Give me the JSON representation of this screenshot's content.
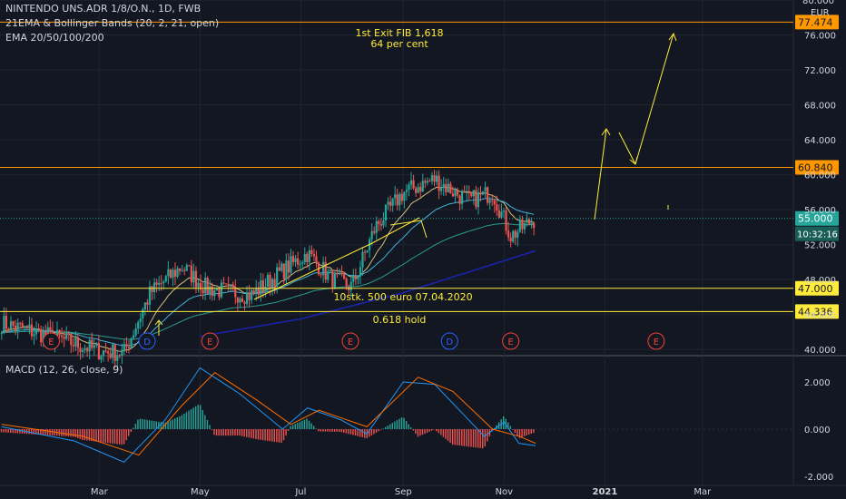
{
  "header": {
    "symbol_line": "NINTENDO UNS.ADR 1/8/O.N., 1D, FWB",
    "indicator_1": "21EMA & Bollinger Bands (20, 2, 21, open)",
    "indicator_2": "EMA 20/50/100/200",
    "currency": "EUR"
  },
  "macd_panel": {
    "label": "MACD (12, 26, close, 9)"
  },
  "colors": {
    "background": "#131722",
    "candle_up": "#26a69a",
    "candle_down": "#ef5350",
    "hline_orange": "#ff9800",
    "hline_yellow": "#ffeb3b",
    "annotation": "#ffeb3b",
    "ema_200": "#1a23b0",
    "earnings_marker": "#f44336",
    "dividend_marker": "#2962ff"
  },
  "chart_data": [
    {
      "type": "candlestick",
      "title": "NINTENDO UNS.ADR 1/8/O.N., 1D, FWB",
      "ylim": [
        39.5,
        80.0
      ],
      "y_ticks": [
        "40.000",
        "44.000",
        "48.000",
        "52.000",
        "56.000",
        "60.000",
        "64.000",
        "68.000",
        "72.000",
        "76.000",
        "80.000"
      ],
      "x_ticks": [
        "Mar",
        "May",
        "Jul",
        "Sep",
        "Nov",
        "2021",
        "Mar"
      ],
      "approx_close_path": [
        {
          "date": "2020-01-02",
          "close": 43.0
        },
        {
          "date": "2020-02-01",
          "close": 41.5
        },
        {
          "date": "2020-03-01",
          "close": 39.8
        },
        {
          "date": "2020-03-16",
          "close": 39.6
        },
        {
          "date": "2020-04-01",
          "close": 46.5
        },
        {
          "date": "2020-04-20",
          "close": 49.5
        },
        {
          "date": "2020-05-05",
          "close": 47.0
        },
        {
          "date": "2020-06-01",
          "close": 46.2
        },
        {
          "date": "2020-06-20",
          "close": 49.0
        },
        {
          "date": "2020-07-05",
          "close": 51.0
        },
        {
          "date": "2020-07-20",
          "close": 48.0
        },
        {
          "date": "2020-08-01",
          "close": 47.2
        },
        {
          "date": "2020-08-15",
          "close": 54.0
        },
        {
          "date": "2020-09-01",
          "close": 58.0
        },
        {
          "date": "2020-09-20",
          "close": 59.5
        },
        {
          "date": "2020-10-10",
          "close": 57.0
        },
        {
          "date": "2020-10-25",
          "close": 58.0
        },
        {
          "date": "2020-11-05",
          "close": 53.0
        },
        {
          "date": "2020-11-20",
          "close": 55.0
        }
      ],
      "horizontal_lines": [
        {
          "label": "77.474",
          "value": 77.474,
          "color": "#ff9800"
        },
        {
          "label": "60.840",
          "value": 60.84,
          "color": "#ff9800"
        },
        {
          "label": "47.000",
          "value": 47.0,
          "color": "#ffeb3b"
        },
        {
          "label": "44.336",
          "value": 44.336,
          "color": "#ffeb3b"
        }
      ],
      "last_price": {
        "label": "55.000",
        "value": 55.0
      },
      "countdown": "10:32:16",
      "annotations": [
        {
          "text_1": "1st Exit FIB 1,618",
          "text_2": "64 per cent"
        },
        {
          "text": "10stk. 500 euro 07.04.2020"
        },
        {
          "text": "0.618 hold"
        }
      ],
      "event_markers": [
        {
          "kind": "E",
          "date": "2020-02-01"
        },
        {
          "kind": "D",
          "date": "2020-03-30"
        },
        {
          "kind": "E",
          "date": "2020-05-07"
        },
        {
          "kind": "E",
          "date": "2020-07-31"
        },
        {
          "kind": "D",
          "date": "2020-09-29"
        },
        {
          "kind": "E",
          "date": "2020-11-05"
        },
        {
          "kind": "E",
          "date": "2021-02-01"
        }
      ]
    },
    {
      "type": "line",
      "title": "MACD (12, 26, close, 9)",
      "ylim": [
        -2.0,
        3.0
      ],
      "y_ticks": [
        "2.000",
        "0.000",
        "-2.000"
      ],
      "series": [
        {
          "points": [
            {
              "date": "2020-01-02",
              "value": 0.1
            },
            {
              "date": "2020-02-15",
              "value": -0.5
            },
            {
              "date": "2020-03-16",
              "value": -1.4
            },
            {
              "date": "2020-04-10",
              "value": 0.4
            },
            {
              "date": "2020-05-01",
              "value": 2.6
            },
            {
              "date": "2020-05-25",
              "value": 1.5
            },
            {
              "date": "2020-06-20",
              "value": 0.0
            },
            {
              "date": "2020-07-05",
              "value": 0.9
            },
            {
              "date": "2020-07-25",
              "value": 0.4
            },
            {
              "date": "2020-08-10",
              "value": -0.2
            },
            {
              "date": "2020-09-01",
              "value": 2.0
            },
            {
              "date": "2020-09-20",
              "value": 1.9
            },
            {
              "date": "2020-10-20",
              "value": -0.3
            },
            {
              "date": "2020-11-01",
              "value": 0.3
            },
            {
              "date": "2020-11-10",
              "value": -0.6
            },
            {
              "date": "2020-11-20",
              "value": -0.7
            }
          ]
        },
        {
          "points": [
            {
              "date": "2020-01-02",
              "value": 0.2
            },
            {
              "date": "2020-02-20",
              "value": -0.3
            },
            {
              "date": "2020-03-25",
              "value": -1.1
            },
            {
              "date": "2020-04-20",
              "value": 1.0
            },
            {
              "date": "2020-05-10",
              "value": 2.4
            },
            {
              "date": "2020-06-05",
              "value": 1.2
            },
            {
              "date": "2020-06-25",
              "value": 0.2
            },
            {
              "date": "2020-07-12",
              "value": 0.8
            },
            {
              "date": "2020-08-10",
              "value": 0.1
            },
            {
              "date": "2020-09-10",
              "value": 2.2
            },
            {
              "date": "2020-10-01",
              "value": 1.6
            },
            {
              "date": "2020-10-25",
              "value": 0.0
            },
            {
              "date": "2020-11-10",
              "value": -0.3
            },
            {
              "date": "2020-11-20",
              "value": -0.6
            }
          ]
        }
      ],
      "histogram": "bars at 0 line, green above / red below"
    }
  ]
}
